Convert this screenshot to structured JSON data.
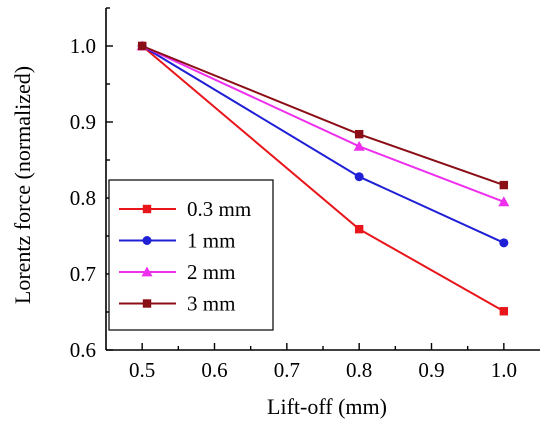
{
  "chart_data": {
    "type": "line",
    "title": "",
    "xlabel": "Lift-off (mm)",
    "ylabel": "Lorentz force (normalized)",
    "xlim": [
      0.45,
      1.05
    ],
    "ylim": [
      0.6,
      1.05
    ],
    "xticks": [
      0.5,
      0.6,
      0.7,
      0.8,
      0.9,
      1.0
    ],
    "yticks": [
      0.6,
      0.7,
      0.8,
      0.9,
      1.0
    ],
    "xtick_labels": [
      "0.5",
      "0.6",
      "0.7",
      "0.8",
      "0.9",
      "1.0"
    ],
    "ytick_labels": [
      "0.6",
      "0.7",
      "0.8",
      "0.9",
      "1.0"
    ],
    "grid": false,
    "legend_position": "bottom-left",
    "x": [
      0.5,
      0.8,
      1.0
    ],
    "series": [
      {
        "name": "0.3 mm",
        "values": [
          1.0,
          0.759,
          0.651
        ],
        "color": "#e8161b",
        "marker": "square",
        "marker_color": "#e8161b"
      },
      {
        "name": "1 mm",
        "values": [
          1.0,
          0.828,
          0.741
        ],
        "color": "#1f1fd6",
        "marker": "circle",
        "marker_color": "#1f1fd6"
      },
      {
        "name": "2 mm",
        "values": [
          1.0,
          0.868,
          0.795
        ],
        "color": "#ee2fee",
        "marker": "triangle",
        "marker_color": "#ee2fee"
      },
      {
        "name": "3 mm",
        "values": [
          1.0,
          0.884,
          0.817
        ],
        "color": "#8b0e16",
        "marker": "square",
        "marker_color": "#8b0e16"
      }
    ],
    "annotations": []
  }
}
